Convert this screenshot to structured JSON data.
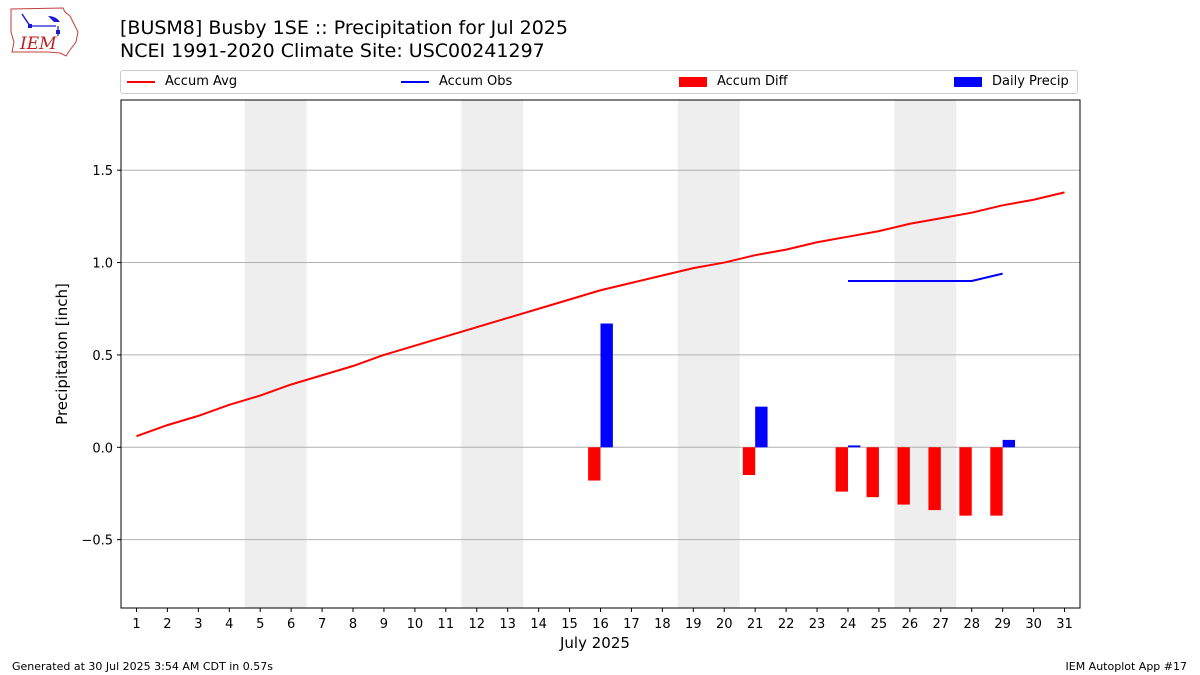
{
  "header": {
    "title_line1": "[BUSM8] Busby 1SE :: Precipitation for Jul 2025",
    "title_line2": "NCEI 1991-2020 Climate Site: USC00241297",
    "logo_text": "IEM"
  },
  "legend": {
    "accum_avg": "Accum Avg",
    "accum_obs": "Accum Obs",
    "accum_diff": "Accum Diff",
    "daily_precip": "Daily Precip",
    "placement": "top"
  },
  "footer": {
    "generated": "Generated at 30 Jul 2025 3:54 AM CDT in 0.57s",
    "app": "IEM Autoplot App #17"
  },
  "colors": {
    "avg": "#ff0000",
    "obs": "#0000ff",
    "diff": "#ff0000",
    "daily": "#0000ff",
    "weekend_shade": "#eeeeee",
    "grid": "#b0b0b0"
  },
  "chart_data": {
    "type": "bar",
    "xlabel": "July 2025",
    "ylabel": "Precipitation [inch]",
    "xlim": [
      0.5,
      31.5
    ],
    "ylim": [
      -0.87,
      1.88
    ],
    "yticks": [
      -0.5,
      0.0,
      0.5,
      1.0,
      1.5
    ],
    "ytick_labels": [
      "−0.5",
      "0.0",
      "0.5",
      "1.0",
      "1.5"
    ],
    "xticks": [
      1,
      2,
      3,
      4,
      5,
      6,
      7,
      8,
      9,
      10,
      11,
      12,
      13,
      14,
      15,
      16,
      17,
      18,
      19,
      20,
      21,
      22,
      23,
      24,
      25,
      26,
      27,
      28,
      29,
      30,
      31
    ],
    "grid": "y",
    "weekend_shading": [
      [
        5,
        6
      ],
      [
        12,
        13
      ],
      [
        19,
        20
      ],
      [
        26,
        27
      ]
    ],
    "series": [
      {
        "name": "Accum Avg",
        "kind": "line",
        "x": [
          1,
          2,
          3,
          4,
          5,
          6,
          7,
          8,
          9,
          10,
          11,
          12,
          13,
          14,
          15,
          16,
          17,
          18,
          19,
          20,
          21,
          22,
          23,
          24,
          25,
          26,
          27,
          28,
          29,
          30,
          31
        ],
        "values": [
          0.06,
          0.12,
          0.17,
          0.23,
          0.28,
          0.34,
          0.39,
          0.44,
          0.5,
          0.55,
          0.6,
          0.65,
          0.7,
          0.75,
          0.8,
          0.85,
          0.89,
          0.93,
          0.97,
          1.0,
          1.04,
          1.07,
          1.11,
          1.14,
          1.17,
          1.21,
          1.24,
          1.27,
          1.31,
          1.34,
          1.38
        ]
      },
      {
        "name": "Accum Obs",
        "kind": "line",
        "x": [
          24,
          25,
          26,
          27,
          28,
          29
        ],
        "values": [
          0.9,
          0.9,
          0.9,
          0.9,
          0.9,
          0.94
        ]
      },
      {
        "name": "Accum Diff",
        "kind": "bar",
        "x": [
          16,
          21,
          24,
          25,
          26,
          27,
          28,
          29
        ],
        "values": [
          -0.18,
          -0.15,
          -0.24,
          -0.27,
          -0.31,
          -0.34,
          -0.37,
          -0.37
        ]
      },
      {
        "name": "Daily Precip",
        "kind": "bar",
        "x": [
          16,
          21,
          24,
          29
        ],
        "values": [
          0.67,
          0.22,
          0.01,
          0.04
        ]
      }
    ]
  }
}
